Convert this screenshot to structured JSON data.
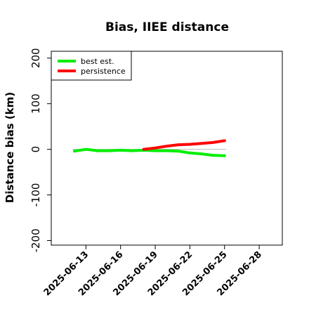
{
  "chart_data": {
    "type": "line",
    "title": "Bias, IIEE distance",
    "xlabel": "",
    "ylabel": "Distance bias (km)",
    "xlim": [
      "2025-06-10",
      "2025-06-30"
    ],
    "ylim": [
      -210,
      215
    ],
    "x_ticks": [
      "2025-06-13",
      "2025-06-16",
      "2025-06-19",
      "2025-06-22",
      "2025-06-25",
      "2025-06-28"
    ],
    "y_ticks": [
      -200,
      -100,
      0,
      100,
      200
    ],
    "zero_line": 0,
    "legend_position": "top-left",
    "grid": false,
    "series": [
      {
        "name": "best est.",
        "color": "#00ee00",
        "x": [
          "2025-06-12",
          "2025-06-13",
          "2025-06-14",
          "2025-06-15",
          "2025-06-16",
          "2025-06-17",
          "2025-06-18",
          "2025-06-19",
          "2025-06-20",
          "2025-06-21",
          "2025-06-22",
          "2025-06-23",
          "2025-06-24",
          "2025-06-25"
        ],
        "values": [
          -4,
          0,
          -3,
          -3,
          -2,
          -3,
          -2,
          -3,
          -3,
          -4,
          -8,
          -10,
          -13,
          -14
        ]
      },
      {
        "name": "persistence",
        "color": "#ff0000",
        "x": [
          "2025-06-18",
          "2025-06-19",
          "2025-06-20",
          "2025-06-21",
          "2025-06-22",
          "2025-06-23",
          "2025-06-24",
          "2025-06-25"
        ],
        "values": [
          0,
          3,
          7,
          10,
          11,
          13,
          15,
          19
        ]
      }
    ]
  }
}
